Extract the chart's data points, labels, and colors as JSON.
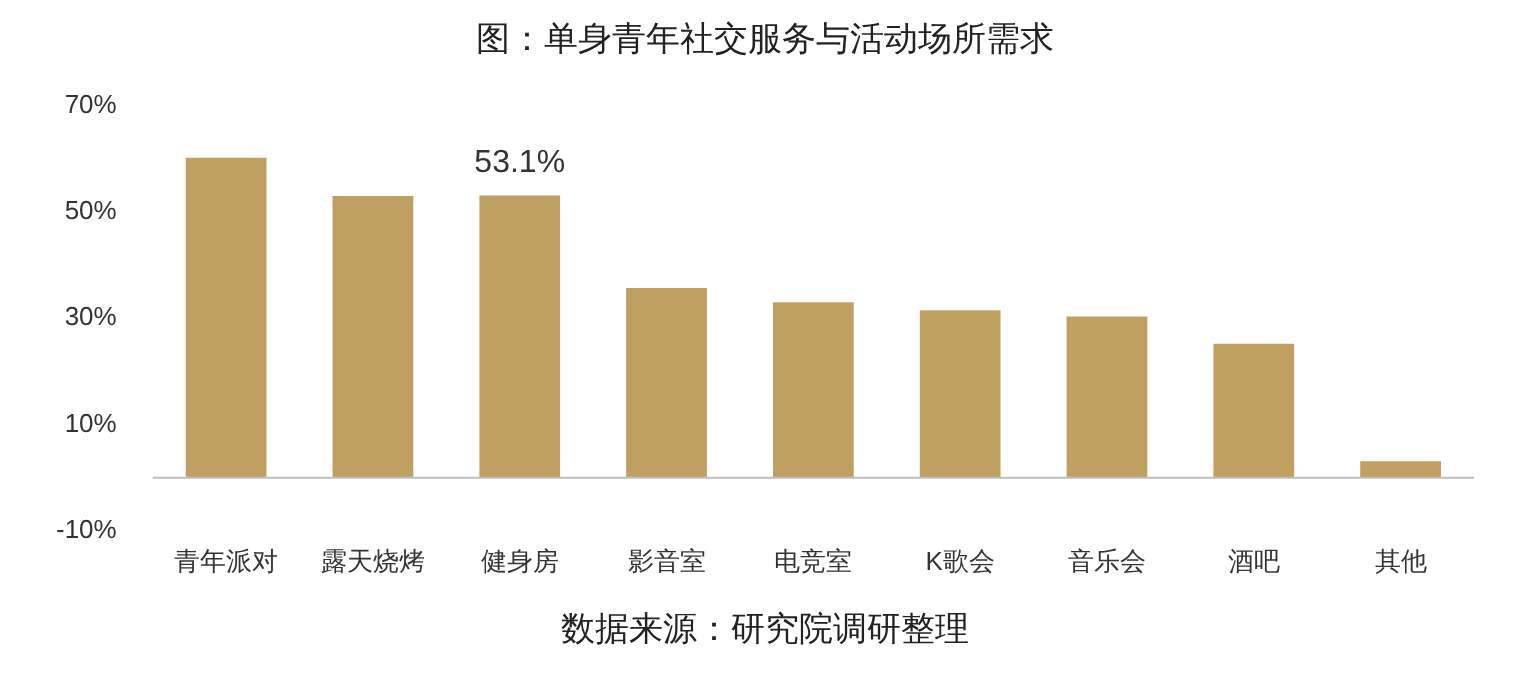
{
  "chart_data": {
    "type": "bar",
    "title": "图：单身青年社交服务与活动场所需求",
    "categories": [
      "青年派对",
      "露天烧烤",
      "健身房",
      "影音室",
      "电竞室",
      "K歌会",
      "音乐会",
      "酒吧",
      "其他"
    ],
    "values": [
      60.2,
      53,
      53.1,
      35.7,
      33,
      31.5,
      30.3,
      25.2,
      3.1
    ],
    "value_labels": [
      null,
      null,
      "53.1%",
      null,
      null,
      null,
      null,
      null,
      null
    ],
    "color": "#c0a062",
    "ylim": [
      -10,
      70
    ],
    "yticks": [
      {
        "value": -10,
        "label": "-10%"
      },
      {
        "value": 10,
        "label": "10%"
      },
      {
        "value": 30,
        "label": "30%"
      },
      {
        "value": 50,
        "label": "50%"
      },
      {
        "value": 70,
        "label": "70%"
      }
    ],
    "grid": false,
    "legend": false,
    "annotations": [
      "数据来源：研究院调研整理"
    ]
  }
}
